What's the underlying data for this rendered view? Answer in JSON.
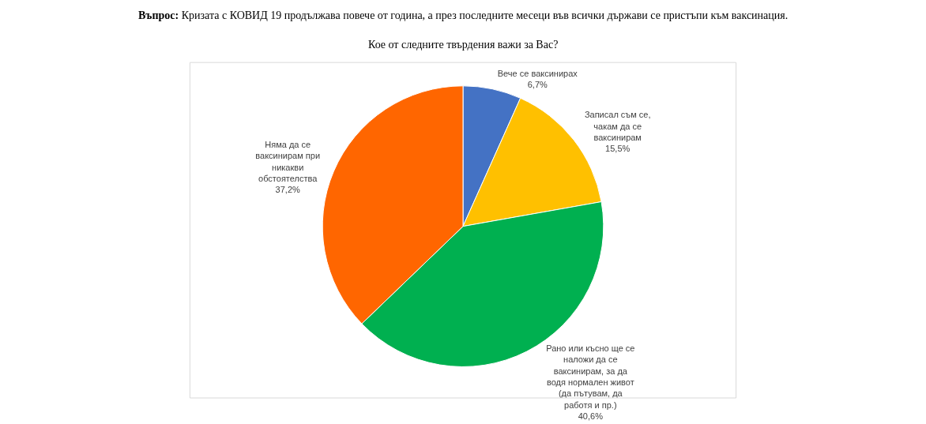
{
  "chart_data": {
    "type": "pie",
    "title": "Въпрос: Кризата с КОВИД 19 продължава повече от година, а през последните месеци във всички държави се пристъпи към ваксинация.",
    "subtitle": "Кое от следните твърдения важи за Вас?",
    "categories": [
      "Вече се ваксинирах",
      "Записал съм се, чакам да се ваксинирам",
      "Рано или късно ще се наложи да се ваксинирам, за да водя нормален живот  (да пътувам, да работя и пр.)",
      "Няма да се ваксинирам при никакви обстоятелства"
    ],
    "values": [
      6.7,
      15.5,
      40.6,
      37.2
    ],
    "value_labels": [
      "6,7%",
      "15,5%",
      "40,6%",
      "37,2%"
    ],
    "colors": [
      "#4472c4",
      "#ffc000",
      "#00b050",
      "#ff6600"
    ],
    "legend": false
  }
}
